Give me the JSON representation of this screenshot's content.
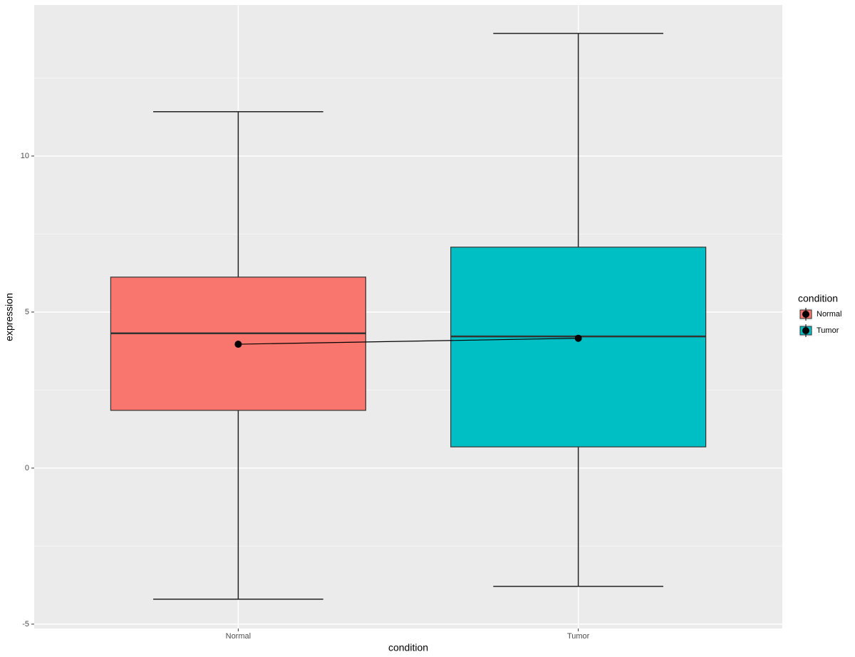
{
  "chart_data": {
    "type": "box",
    "x_label": "condition",
    "y_label": "expression",
    "categories": [
      "Normal",
      "Tumor"
    ],
    "legend_title": "condition",
    "series": [
      {
        "name": "Normal",
        "color": "#F8766D",
        "whisker_low": -4.2,
        "q1": 1.85,
        "median": 4.32,
        "q3": 6.12,
        "whisker_high": 11.42,
        "mean": 3.97
      },
      {
        "name": "Tumor",
        "color": "#00BFC4",
        "whisker_low": -3.79,
        "q1": 0.68,
        "median": 4.22,
        "q3": 7.08,
        "whisker_high": 13.93,
        "mean": 4.16
      }
    ],
    "ylim": [
      -5.14,
      14.84
    ],
    "yticks": [
      -5,
      0,
      5,
      10
    ],
    "minor_yticks": [
      -2.5,
      2.5,
      7.5,
      12.5
    ],
    "grid": true,
    "legend": "right"
  }
}
